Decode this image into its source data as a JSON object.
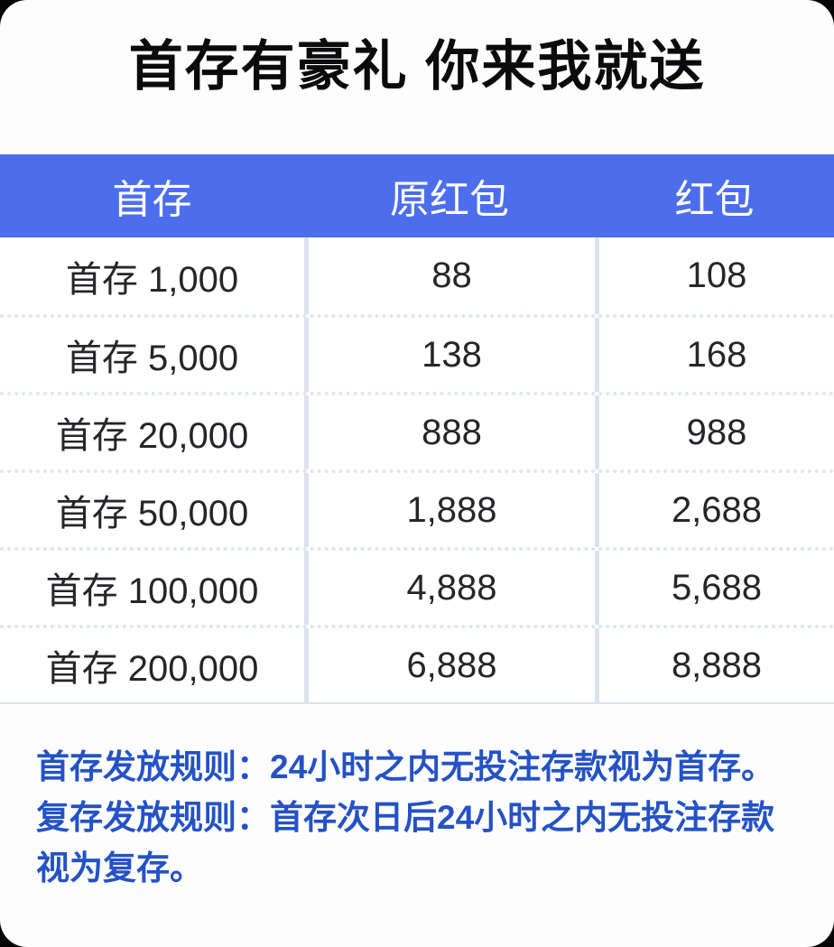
{
  "title": "首存有豪礼 你来我就送",
  "table": {
    "headers": [
      "首存",
      "原红包",
      "红包"
    ],
    "rows": [
      [
        "首存 1,000",
        "88",
        "108"
      ],
      [
        "首存 5,000",
        "138",
        "168"
      ],
      [
        "首存 20,000",
        "888",
        "988"
      ],
      [
        "首存 50,000",
        "1,888",
        "2,688"
      ],
      [
        "首存 100,000",
        "4,888",
        "5,688"
      ],
      [
        "首存 200,000",
        "6,888",
        "8,888"
      ]
    ]
  },
  "rules": [
    "首存发放规则：24小时之内无投注存款视为首存。",
    "复存发放规则：首存次日后24小时之内无投注存款视为复存。"
  ],
  "colors": {
    "header_bg": "#4c6eec",
    "header_text": "#ffffff",
    "divider": "#dce3ef",
    "body_text": "#26262a",
    "rules_text": "#2452c6",
    "card_bg": "#fdfdfe",
    "page_bg": "#050505",
    "title_text": "#0b0b0d"
  }
}
